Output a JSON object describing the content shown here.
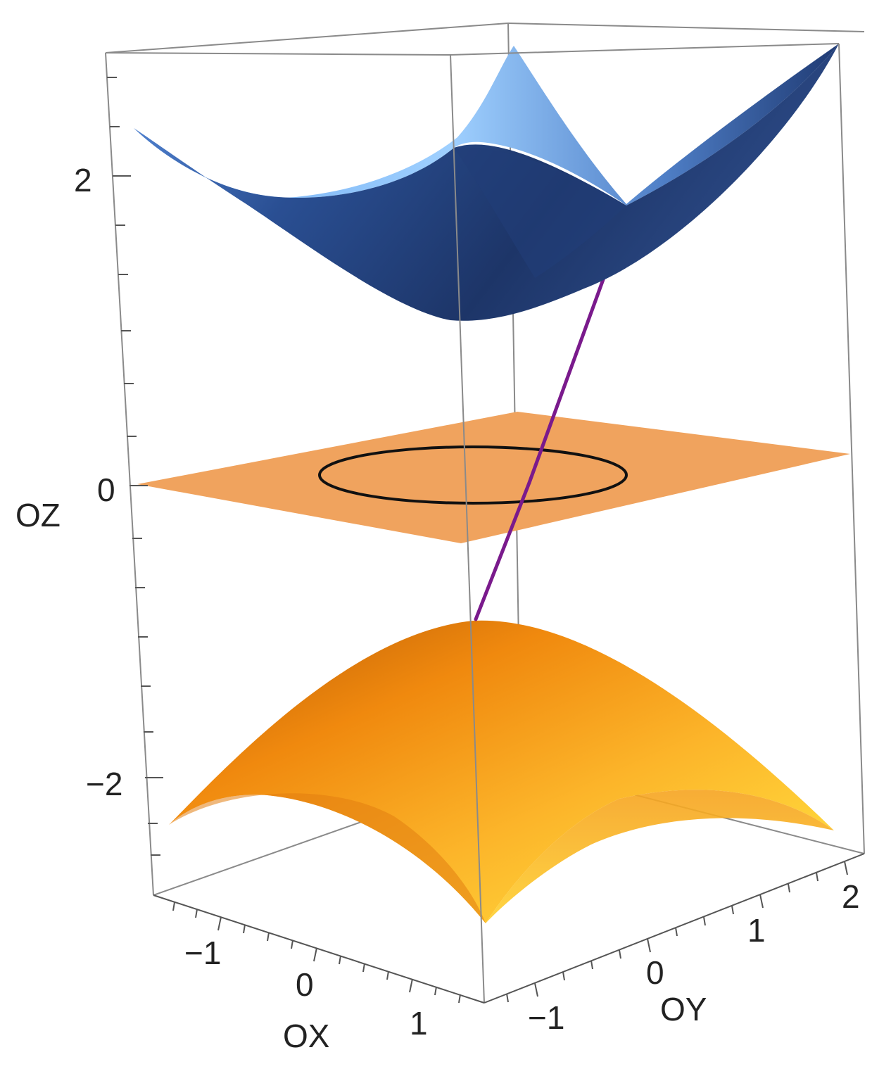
{
  "axes": {
    "x": {
      "title": "OX",
      "ticks": [
        "−1",
        "0",
        "1"
      ]
    },
    "y": {
      "title": "OY",
      "ticks": [
        "−1",
        "0",
        "1",
        "2"
      ]
    },
    "z": {
      "title": "OZ",
      "ticks": [
        "2",
        "0",
        "−2"
      ]
    }
  },
  "surfaces": {
    "upper": {
      "description_color": "#3d6fc4"
    },
    "plane": {
      "color": "#f0a35e"
    },
    "lower": {
      "color": "#f7a21a"
    },
    "circle": {
      "color": "#111111"
    },
    "line": {
      "color": "#7a1a8c"
    }
  }
}
